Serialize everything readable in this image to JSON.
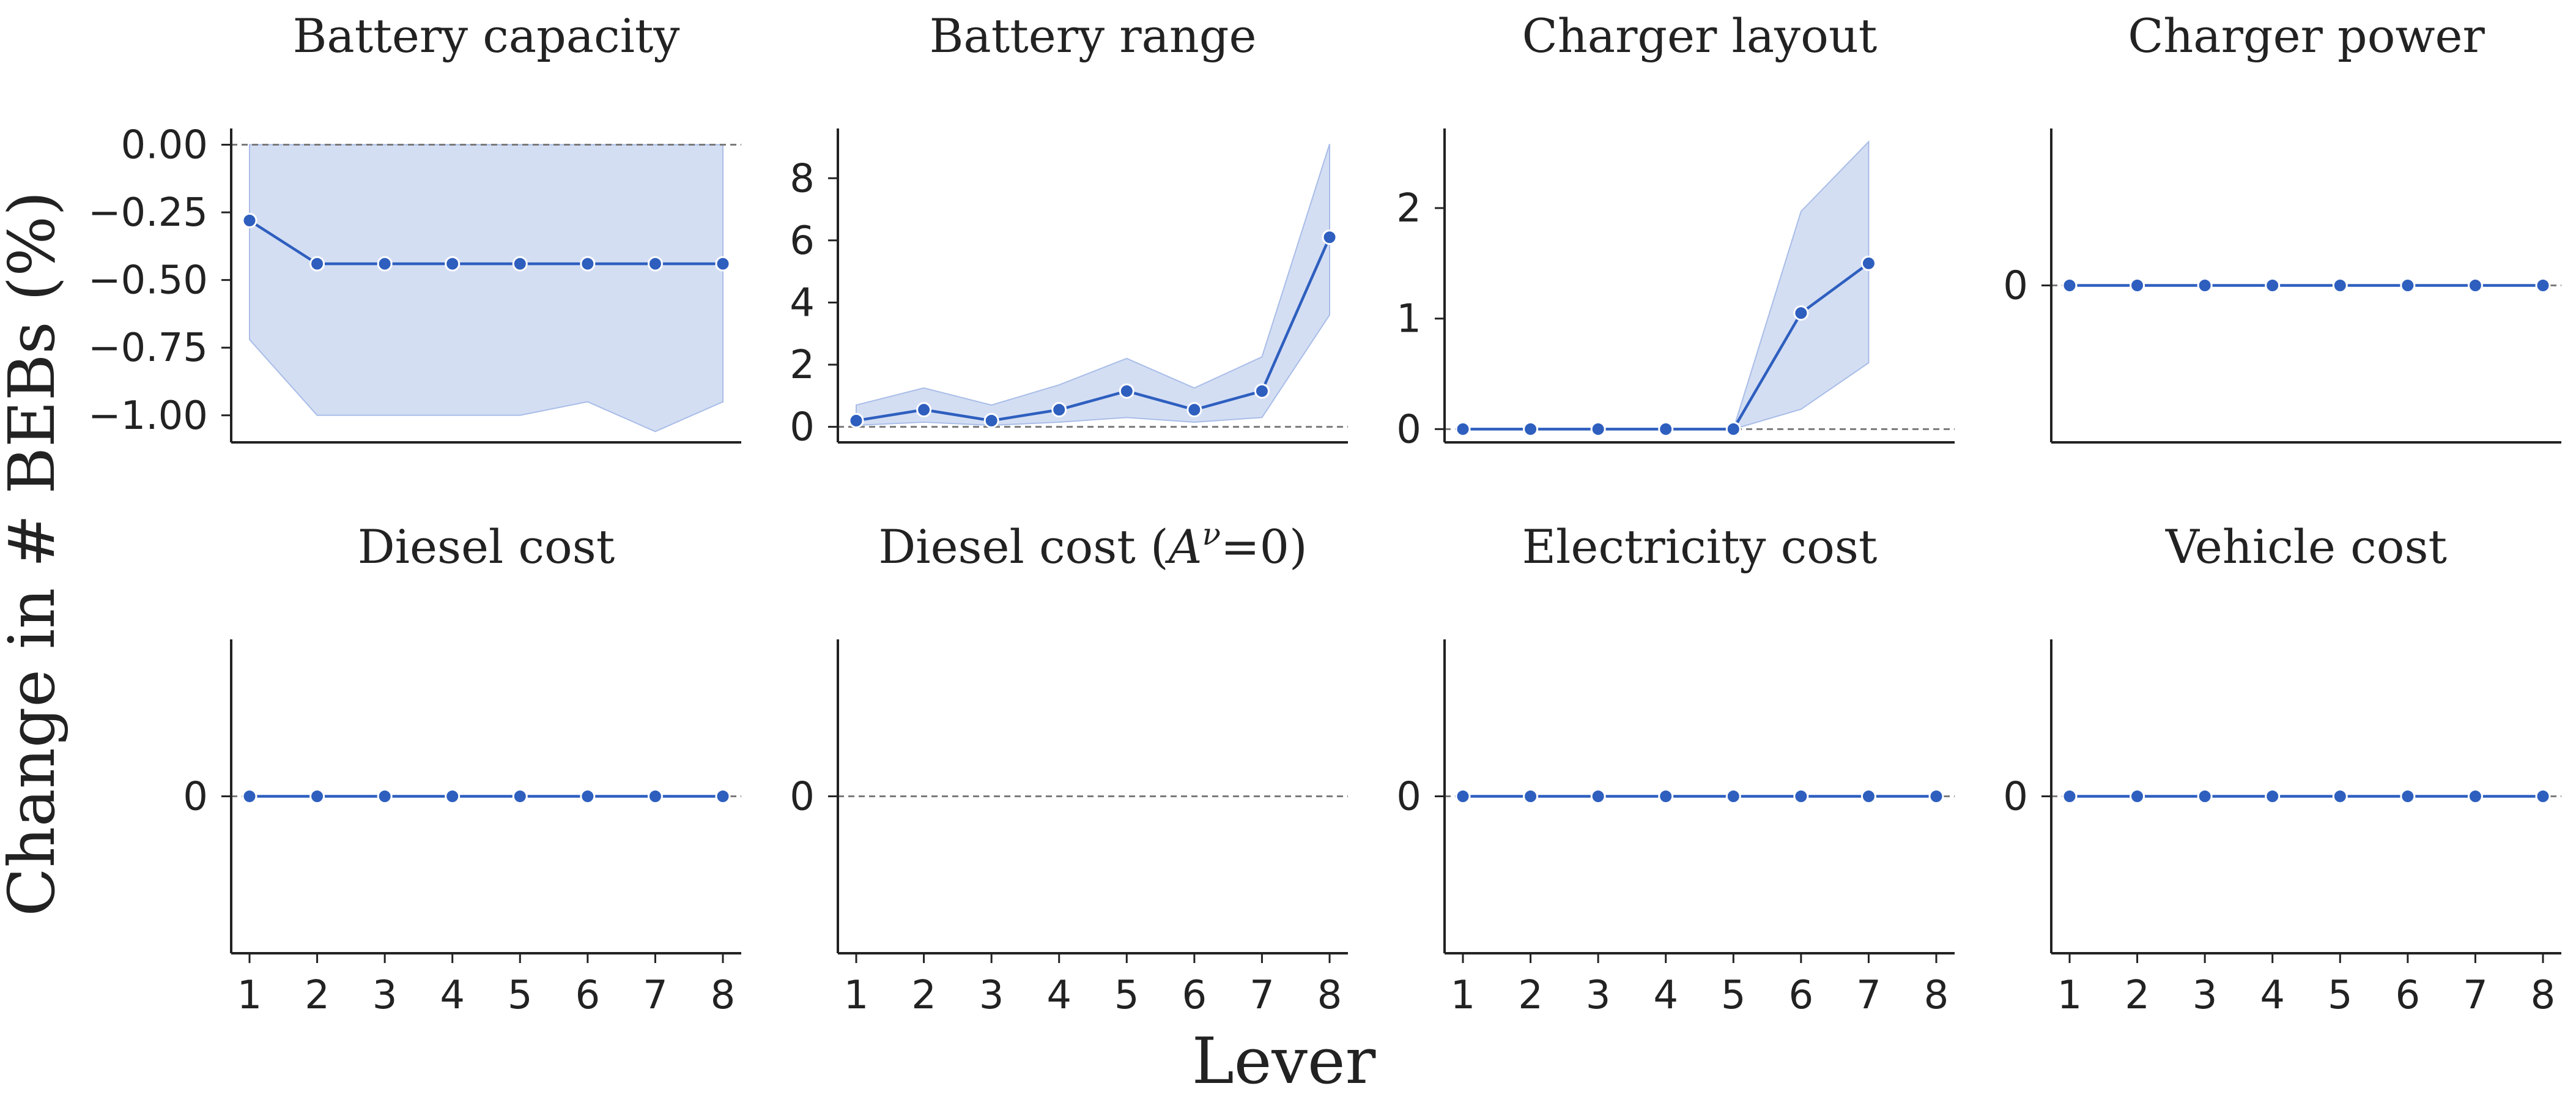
{
  "figure": {
    "ylabel": "Change in # BEBs (%)",
    "xlabel": "Lever",
    "line_color": "#2e5fbf",
    "band_color": "#a9bde8",
    "ref_line_color": "#7a7a7a"
  },
  "chart_data": [
    {
      "type": "line",
      "title": "Battery capacity",
      "x": [
        1,
        2,
        3,
        4,
        5,
        6,
        7,
        8
      ],
      "y": [
        -0.28,
        -0.44,
        -0.44,
        -0.44,
        -0.44,
        -0.44,
        -0.44,
        -0.44
      ],
      "ci_low": [
        -0.72,
        -1.0,
        -1.0,
        -1.0,
        -1.0,
        -0.95,
        -1.06,
        -0.95
      ],
      "ci_high": [
        0.0,
        0.0,
        0.0,
        0.0,
        0.0,
        0.0,
        0.0,
        0.0
      ],
      "ylim": [
        -1.1,
        0.06
      ],
      "yticks": [
        0.0,
        -0.25,
        -0.5,
        -0.75,
        -1.0
      ],
      "ytick_labels": [
        "0.00",
        "−0.25",
        "−0.50",
        "−0.75",
        "−1.00"
      ],
      "xticks_visible": false
    },
    {
      "type": "line",
      "title": "Battery range",
      "x": [
        1,
        2,
        3,
        4,
        5,
        6,
        7,
        8
      ],
      "y": [
        0.2,
        0.55,
        0.2,
        0.55,
        1.15,
        0.55,
        1.15,
        6.1
      ],
      "ci_low": [
        0.05,
        0.15,
        0.05,
        0.15,
        0.3,
        0.15,
        0.3,
        3.6
      ],
      "ci_high": [
        0.7,
        1.25,
        0.7,
        1.35,
        2.2,
        1.25,
        2.25,
        9.1
      ],
      "ylim": [
        -0.5,
        9.6
      ],
      "yticks": [
        0,
        2,
        4,
        6,
        8
      ],
      "ytick_labels": [
        "0",
        "2",
        "4",
        "6",
        "8"
      ],
      "xticks_visible": false
    },
    {
      "type": "line",
      "title": "Charger layout",
      "x": [
        1,
        2,
        3,
        4,
        5,
        6,
        7
      ],
      "y": [
        0,
        0,
        0,
        0,
        0,
        1.05,
        1.5
      ],
      "ci_low": [
        0,
        0,
        0,
        0,
        0,
        0.18,
        0.6
      ],
      "ci_high": [
        0,
        0,
        0,
        0,
        0,
        1.97,
        2.6
      ],
      "ylim": [
        -0.12,
        2.72
      ],
      "yticks": [
        0,
        1,
        2
      ],
      "ytick_labels": [
        "0",
        "1",
        "2"
      ],
      "xticks_visible": false
    },
    {
      "type": "line",
      "title": "Charger power",
      "x": [
        1,
        2,
        3,
        4,
        5,
        6,
        7,
        8
      ],
      "y": [
        0,
        0,
        0,
        0,
        0,
        0,
        0,
        0
      ],
      "ylim": [
        -1,
        1
      ],
      "yticks": [
        0
      ],
      "ytick_labels": [
        "0"
      ],
      "xticks_visible": false
    },
    {
      "type": "line",
      "title": "Diesel cost",
      "x": [
        1,
        2,
        3,
        4,
        5,
        6,
        7,
        8
      ],
      "y": [
        0,
        0,
        0,
        0,
        0,
        0,
        0,
        0
      ],
      "ylim": [
        -1,
        1
      ],
      "yticks": [
        0
      ],
      "ytick_labels": [
        "0"
      ],
      "xticks_visible": true,
      "xtick_labels": [
        "1",
        "2",
        "3",
        "4",
        "5",
        "6",
        "7",
        "8"
      ]
    },
    {
      "type": "line",
      "title_parts": [
        "Diesel cost (",
        "A",
        "ν",
        "=0)"
      ],
      "x": [],
      "y": [],
      "ylim": [
        -1,
        1
      ],
      "yticks": [
        0
      ],
      "ytick_labels": [
        "0"
      ],
      "xticks_visible": true,
      "xtick_labels": [
        "1",
        "2",
        "3",
        "4",
        "5",
        "6",
        "7",
        "8"
      ]
    },
    {
      "type": "line",
      "title": "Electricity cost",
      "x": [
        1,
        2,
        3,
        4,
        5,
        6,
        7,
        8
      ],
      "y": [
        0,
        0,
        0,
        0,
        0,
        0,
        0,
        0
      ],
      "ylim": [
        -1,
        1
      ],
      "yticks": [
        0
      ],
      "ytick_labels": [
        "0"
      ],
      "xticks_visible": true,
      "xtick_labels": [
        "1",
        "2",
        "3",
        "4",
        "5",
        "6",
        "7",
        "8"
      ]
    },
    {
      "type": "line",
      "title": "Vehicle cost",
      "x": [
        1,
        2,
        3,
        4,
        5,
        6,
        7,
        8
      ],
      "y": [
        0,
        0,
        0,
        0,
        0,
        0,
        0,
        0
      ],
      "ylim": [
        -1,
        1
      ],
      "yticks": [
        0
      ],
      "ytick_labels": [
        "0"
      ],
      "xticks_visible": true,
      "xtick_labels": [
        "1",
        "2",
        "3",
        "4",
        "5",
        "6",
        "7",
        "8"
      ]
    }
  ]
}
